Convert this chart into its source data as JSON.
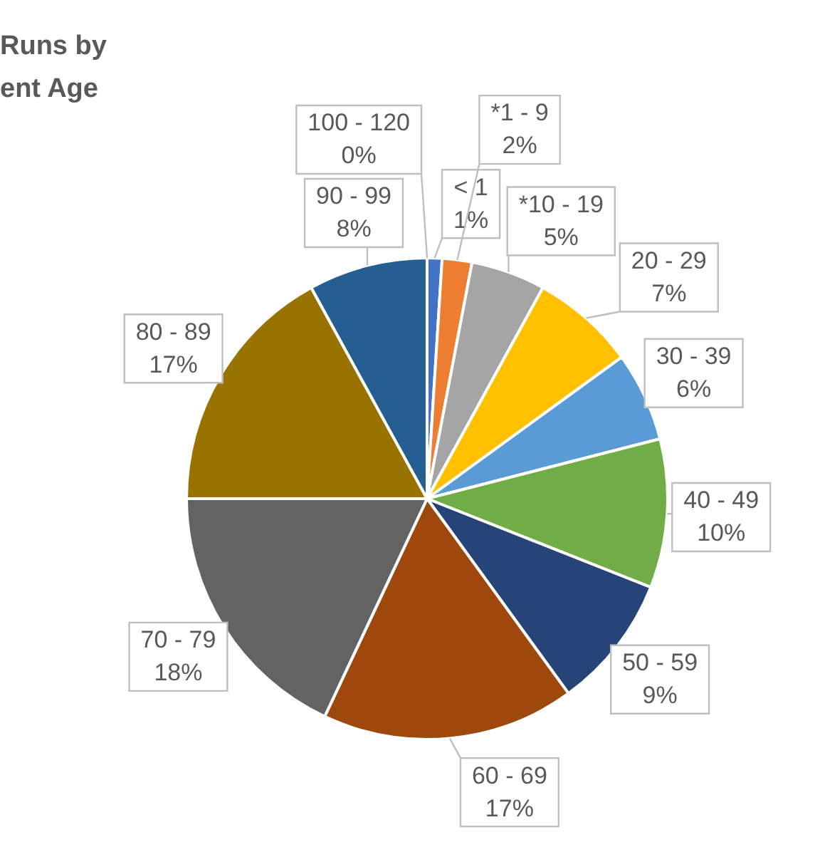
{
  "chart_data": {
    "type": "pie",
    "title": "Runs by\nent Age",
    "categories": [
      "< 1",
      "*1 - 9",
      "*10 - 19",
      "20 - 29",
      "30 - 39",
      "40 - 49",
      "50 - 59",
      "60 - 69",
      "70 - 79",
      "80 - 89",
      "90 - 99",
      "100 - 120"
    ],
    "values": [
      1,
      2,
      5,
      7,
      6,
      10,
      9,
      17,
      18,
      17,
      8,
      0
    ],
    "value_labels": [
      "1%",
      "2%",
      "5%",
      "7%",
      "6%",
      "10%",
      "9%",
      "17%",
      "18%",
      "17%",
      "8%",
      "0%"
    ],
    "colors": [
      "#4472c4",
      "#ed7d31",
      "#a5a5a5",
      "#ffc000",
      "#5b9bd5",
      "#70ad47",
      "#264478",
      "#9e480e",
      "#636363",
      "#997300",
      "#255e91",
      "#698ed0"
    ],
    "legend": false
  }
}
